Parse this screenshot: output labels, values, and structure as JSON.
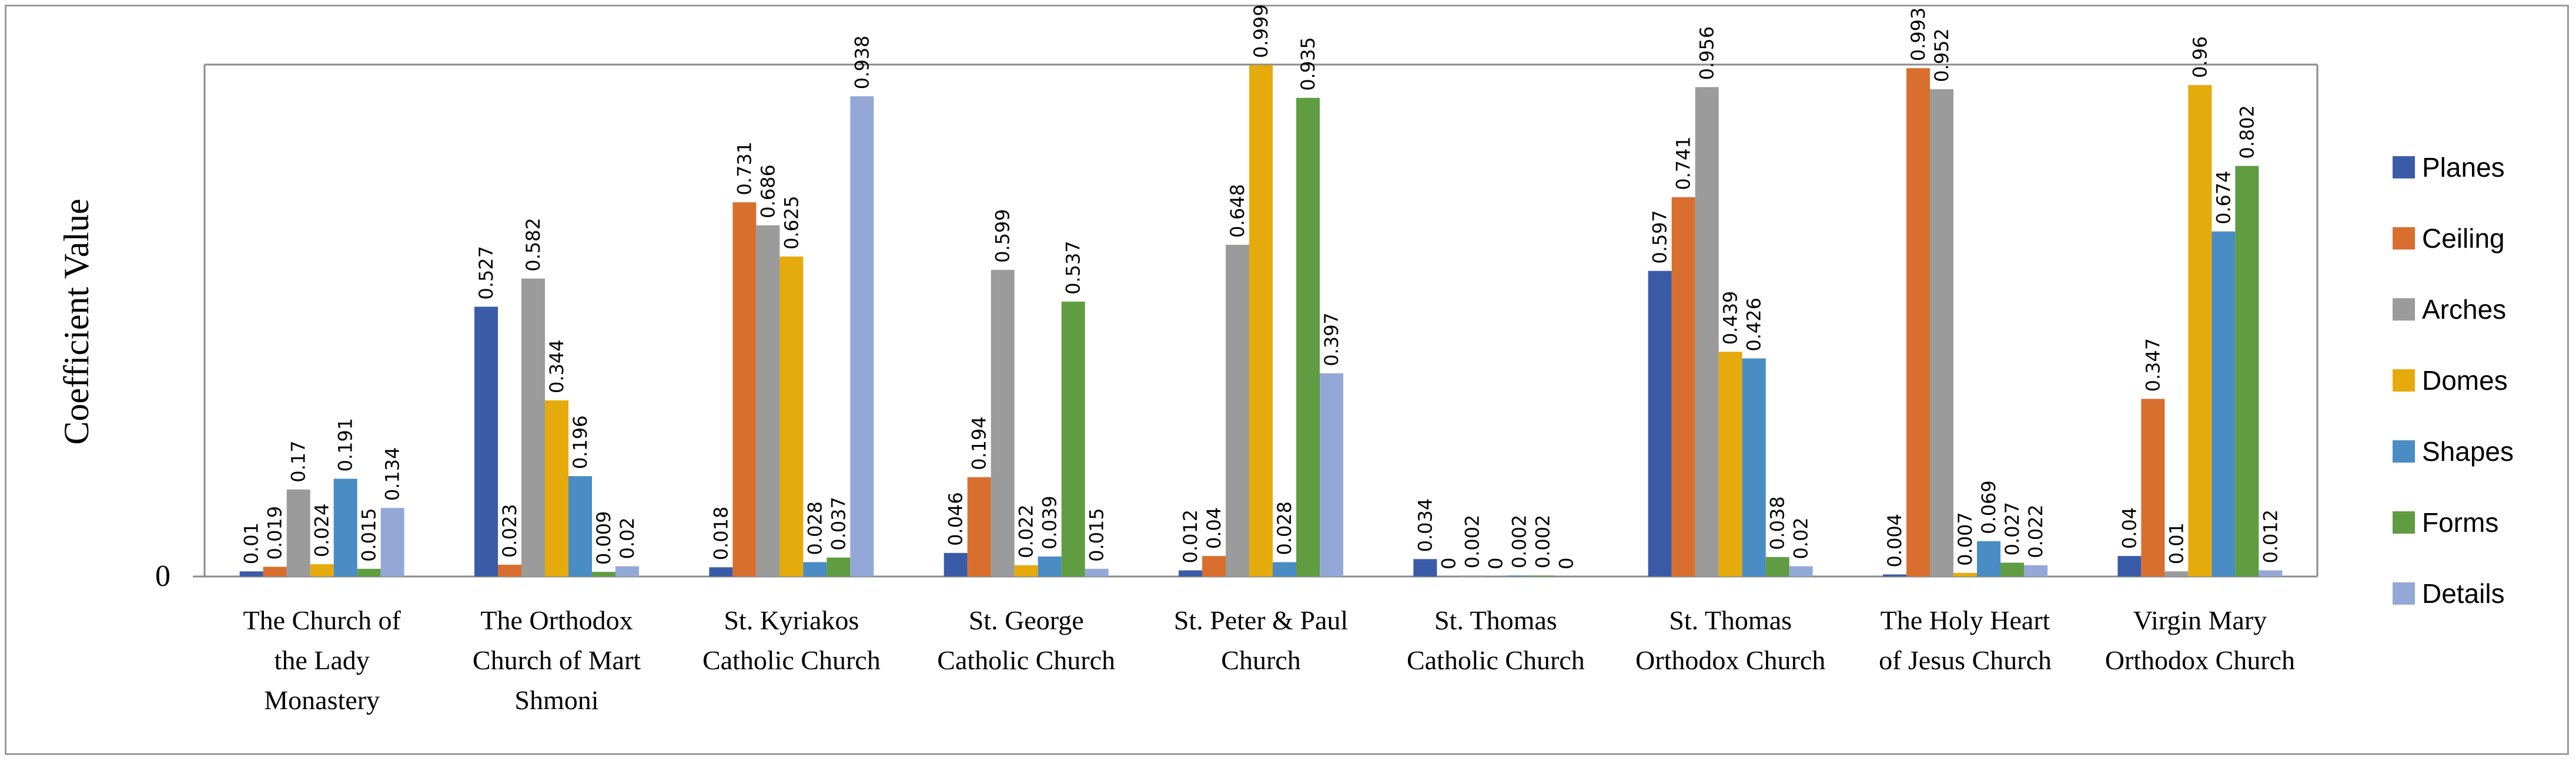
{
  "chart_data": {
    "type": "bar",
    "title": "",
    "xlabel": "",
    "ylabel": "Coefficient Value",
    "ylim": [
      0,
      1
    ],
    "y_ticks": [
      "0"
    ],
    "legend_position": "right",
    "categories": [
      "The Church of the Lady Monastery",
      "The Orthodox Church of Mart Shmoni",
      "St. Kyriakos Catholic Church",
      "St. George Catholic Church",
      "St. Peter & Paul Church",
      "St. Thomas Catholic Church",
      "St. Thomas Orthodox Church",
      "The Holy Heart of Jesus Church",
      "Virgin Mary Orthodox Church"
    ],
    "category_lines": [
      [
        "The Church of",
        "the Lady",
        "Monastery"
      ],
      [
        "The Orthodox",
        "Church of Mart",
        "Shmoni"
      ],
      [
        "St. Kyriakos",
        "Catholic Church"
      ],
      [
        "St. George",
        "Catholic Church"
      ],
      [
        "St. Peter & Paul",
        "Church"
      ],
      [
        "St. Thomas",
        "Catholic Church"
      ],
      [
        "St. Thomas",
        "Orthodox Church"
      ],
      [
        "The Holy Heart",
        "of Jesus Church"
      ],
      [
        "Virgin Mary",
        "Orthodox Church"
      ]
    ],
    "series": [
      {
        "name": "Planes",
        "color": "#3a5ba8",
        "values": [
          0.01,
          0.527,
          0.018,
          0.046,
          0.012,
          0.034,
          0.597,
          0.004,
          0.04
        ],
        "labels": [
          "0.01",
          "0.527",
          "0.018",
          "0.046",
          "0.012",
          "0.034",
          "0.597",
          "0.004",
          "0.04"
        ]
      },
      {
        "name": "Ceiling",
        "color": "#d86f2f",
        "values": [
          0.019,
          0.023,
          0.731,
          0.194,
          0.04,
          0,
          0.741,
          0.993,
          0.347
        ],
        "labels": [
          "0.019",
          "0.023",
          "0.731",
          "0.194",
          "0.04",
          "0",
          "0.741",
          "0.993",
          "0.347"
        ]
      },
      {
        "name": "Arches",
        "color": "#9b9b9b",
        "values": [
          0.17,
          0.582,
          0.686,
          0.599,
          0.648,
          0.002,
          0.956,
          0.952,
          0.01
        ],
        "labels": [
          "0.17",
          "0.582",
          "0.686",
          "0.599",
          "0.648",
          "0.002",
          "0.956",
          "0.952",
          "0.01"
        ]
      },
      {
        "name": "Domes",
        "color": "#e5aa0b",
        "values": [
          0.024,
          0.344,
          0.625,
          0.022,
          0.999,
          0,
          0.439,
          0.007,
          0.96
        ],
        "labels": [
          "0.024",
          "0.344",
          "0.625",
          "0.022",
          "0.999",
          "0",
          "0.439",
          "0.007",
          "0.96"
        ]
      },
      {
        "name": "Shapes",
        "color": "#4a8cc4",
        "values": [
          0.191,
          0.196,
          0.028,
          0.039,
          0.028,
          0.002,
          0.426,
          0.069,
          0.674
        ],
        "labels": [
          "0.191",
          "0.196",
          "0.028",
          "0.039",
          "0.028",
          "0.002",
          "0.426",
          "0.069",
          "0.674"
        ]
      },
      {
        "name": "Forms",
        "color": "#5f9c42",
        "values": [
          0.015,
          0.009,
          0.037,
          0.537,
          0.935,
          0.002,
          0.038,
          0.027,
          0.802
        ],
        "labels": [
          "0.015",
          "0.009",
          "0.037",
          "0.537",
          "0.935",
          "0.002",
          "0.038",
          "0.027",
          "0.802"
        ]
      },
      {
        "name": "Details",
        "color": "#94a8d8",
        "values": [
          0.134,
          0.02,
          0.938,
          0.015,
          0.397,
          0,
          0.02,
          0.022,
          0.012
        ],
        "labels": [
          "0.134",
          "0.02",
          "0.938",
          "0.015",
          "0.397",
          "0",
          "0.02",
          "0.022",
          "0.012"
        ]
      }
    ]
  }
}
